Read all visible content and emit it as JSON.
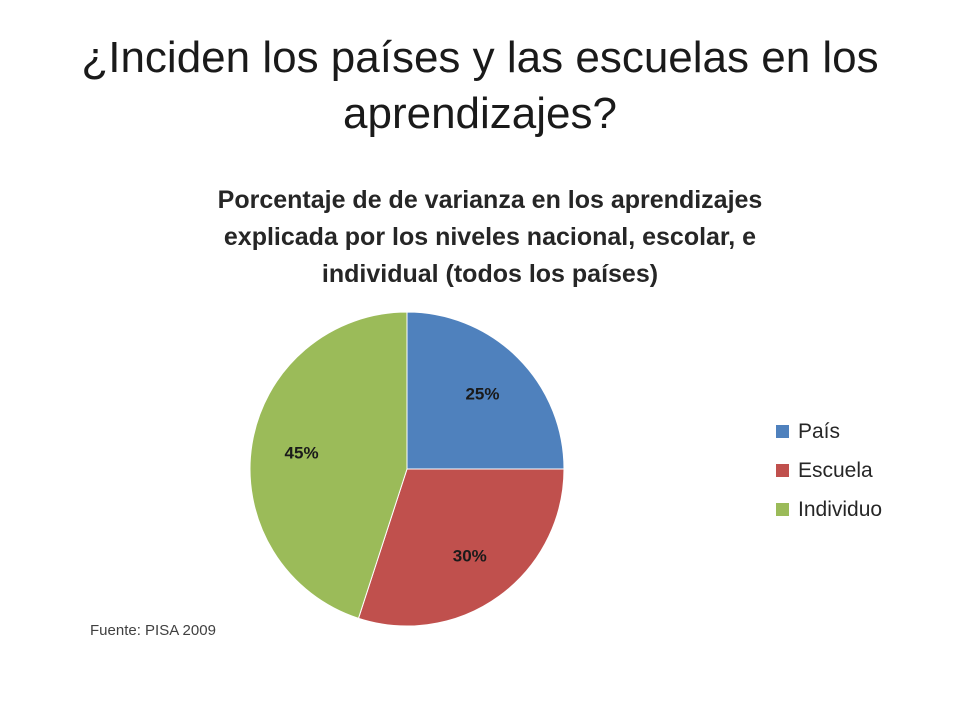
{
  "slide": {
    "title": "¿Inciden los países y las escuelas en los aprendizajes?"
  },
  "chart_data": {
    "type": "pie",
    "title": "Porcentaje de de varianza en los aprendizajes explicada por los niveles nacional, escolar, e individual (todos los países)",
    "categories": [
      "País",
      "Escuela",
      "Individuo"
    ],
    "values": [
      25,
      30,
      45
    ],
    "data_labels": [
      "25%",
      "30%",
      "45%"
    ],
    "colors": [
      "#4f81bd",
      "#c0504d",
      "#9bbb59"
    ],
    "legend_position": "right"
  },
  "source": "Fuente: PISA 2009"
}
